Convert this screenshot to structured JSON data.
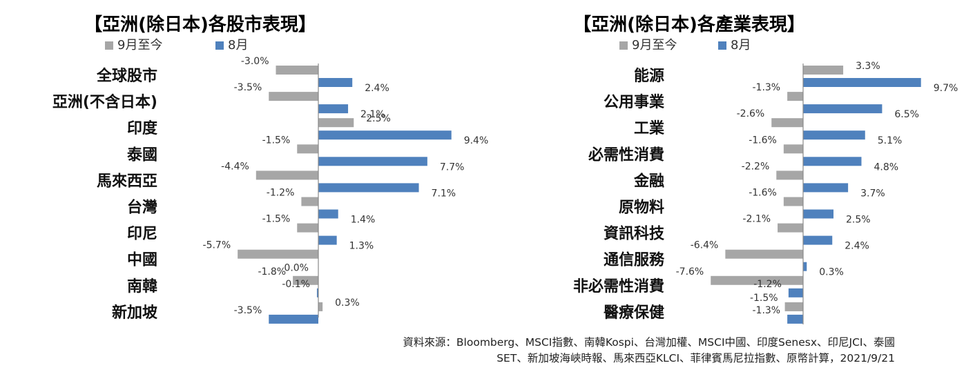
{
  "chart_data": [
    {
      "type": "bar",
      "title": "【亞洲(除日本)各股市表現】",
      "categories": [
        "全球股市",
        "亞洲(不含日本)",
        "印度",
        "泰國",
        "馬來西亞",
        "台灣",
        "印尼",
        "中國",
        "南韓",
        "新加坡"
      ],
      "series": [
        {
          "name": "9月至今",
          "values": [
            -3.0,
            -3.5,
            2.5,
            -1.5,
            -4.4,
            -1.2,
            -1.5,
            -5.7,
            -1.8,
            0.3
          ],
          "labels": [
            "-3.0%",
            "-3.5%",
            "2.5%",
            "-1.5%",
            "-4.4%",
            "-1.2%",
            "-1.5%",
            "-5.7%",
            "-1.8%",
            "0.3%"
          ]
        },
        {
          "name": "8月",
          "values": [
            2.4,
            2.1,
            9.4,
            7.7,
            7.1,
            1.4,
            1.3,
            0.0,
            -0.1,
            -3.5
          ],
          "labels": [
            "2.4%",
            "2.1%",
            "9.4%",
            "7.7%",
            "7.1%",
            "1.4%",
            "1.3%",
            "0.0%",
            "-0.1%",
            "-3.5%"
          ]
        }
      ],
      "orientation": "horizontal",
      "legend": "top-left"
    },
    {
      "type": "bar",
      "title": "【亞洲(除日本)各產業表現】",
      "categories": [
        "能源",
        "公用事業",
        "工業",
        "必需性消費",
        "金融",
        "原物料",
        "資訊科技",
        "通信服務",
        "非必需性消費",
        "醫療保健"
      ],
      "series": [
        {
          "name": "9月至今",
          "values": [
            3.3,
            -1.3,
            -2.6,
            -1.6,
            -2.2,
            -1.6,
            -2.1,
            -6.4,
            -7.6,
            -1.5
          ],
          "labels": [
            "3.3%",
            "-1.3%",
            "-2.6%",
            "-1.6%",
            "-2.2%",
            "-1.6%",
            "-2.1%",
            "-6.4%",
            "-7.6%",
            "-1.5%"
          ]
        },
        {
          "name": "8月",
          "values": [
            9.7,
            6.5,
            5.1,
            4.8,
            3.7,
            2.5,
            2.4,
            0.3,
            -1.2,
            -1.3
          ],
          "labels": [
            "9.7%",
            "6.5%",
            "5.1%",
            "4.8%",
            "3.7%",
            "2.5%",
            "2.4%",
            "0.3%",
            "-1.2%",
            "-1.3%"
          ]
        }
      ],
      "orientation": "horizontal",
      "legend": "top-left"
    }
  ],
  "colors": {
    "series_gray": "#a6a6a6",
    "series_blue": "#4f81bd"
  },
  "source": {
    "line1": "資料來源：Bloomberg、MSCI指數、南韓Kospi、台灣加權、MSCI中國、印度Senesx、印尼JCI、泰國",
    "line2": "SET、新加坡海峽時報、馬來西亞KLCI、菲律賓馬尼拉指數、原幣計算，2021/9/21"
  }
}
